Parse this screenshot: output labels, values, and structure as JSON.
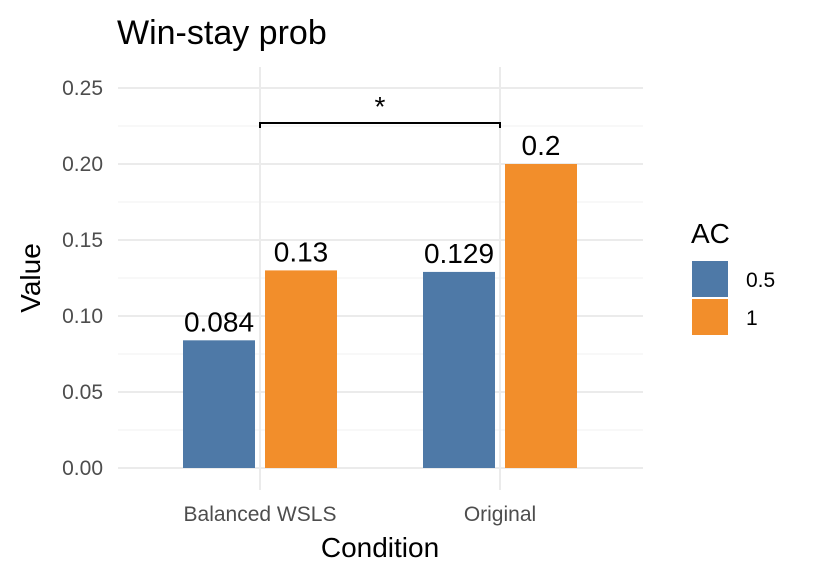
{
  "chart_data": {
    "type": "bar",
    "title": "Win-stay prob",
    "xlabel": "Condition",
    "ylabel": "Value",
    "ylim": [
      0,
      0.25
    ],
    "yticks": [
      "0.00",
      "0.05",
      "0.10",
      "0.15",
      "0.20",
      "0.25"
    ],
    "categories": [
      "Balanced WSLS",
      "Original"
    ],
    "series": [
      {
        "name": "0.5",
        "color": "#4e79a7",
        "values": [
          0.084,
          0.129
        ],
        "labels": [
          "0.084",
          "0.129"
        ]
      },
      {
        "name": "1",
        "color": "#f28e2b",
        "values": [
          0.13,
          0.2
        ],
        "labels": [
          "0.13",
          "0.2"
        ]
      }
    ],
    "legend": {
      "title": "AC",
      "position": "right"
    },
    "grid": true,
    "annotations": [
      {
        "type": "significance-bracket",
        "from": "Balanced WSLS",
        "to": "Original",
        "label": "*",
        "y": 0.227
      }
    ]
  }
}
